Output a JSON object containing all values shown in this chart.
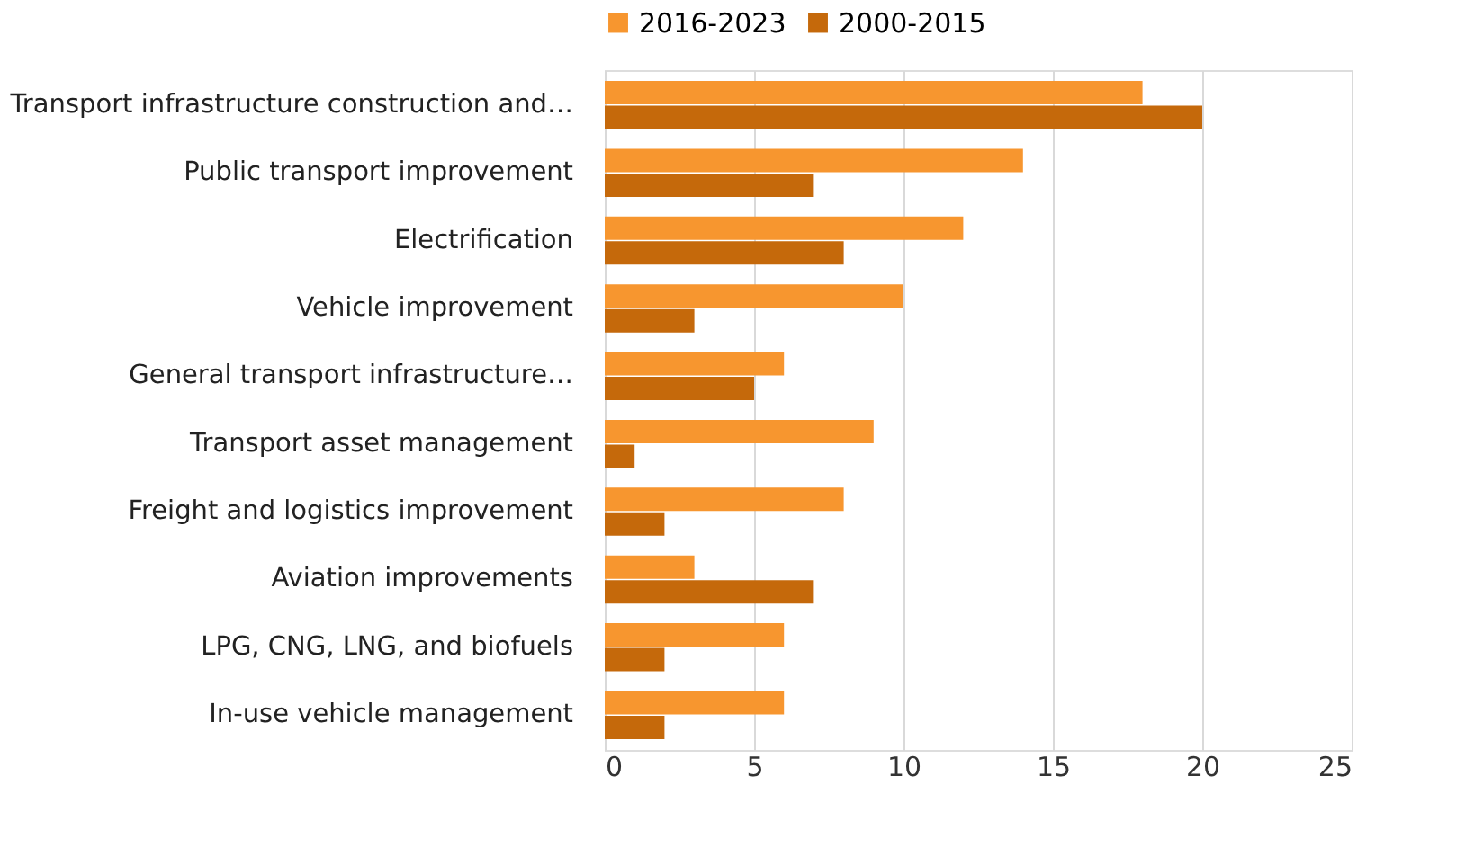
{
  "chart_data": {
    "type": "bar",
    "orientation": "horizontal",
    "categories": [
      "Transport infrastructure construction and…",
      "Public transport improvement",
      "Electrification",
      "Vehicle improvement",
      "General transport infrastructure…",
      "Transport asset management",
      "Freight and logistics improvement",
      "Aviation improvements",
      "LPG, CNG, LNG, and biofuels",
      "In-use vehicle management"
    ],
    "series": [
      {
        "name": "2016-2023",
        "color": "#f7962f",
        "values": [
          18,
          14,
          12,
          10,
          6,
          9,
          8,
          3,
          6,
          6
        ]
      },
      {
        "name": "2000-2015",
        "color": "#c5690b",
        "values": [
          20,
          7,
          8,
          3,
          5,
          1,
          2,
          7,
          2,
          2
        ]
      }
    ],
    "xlim": [
      0,
      25
    ],
    "xticks": [
      0,
      5,
      10,
      15,
      20,
      25
    ],
    "grid": "x",
    "legend": "top"
  }
}
